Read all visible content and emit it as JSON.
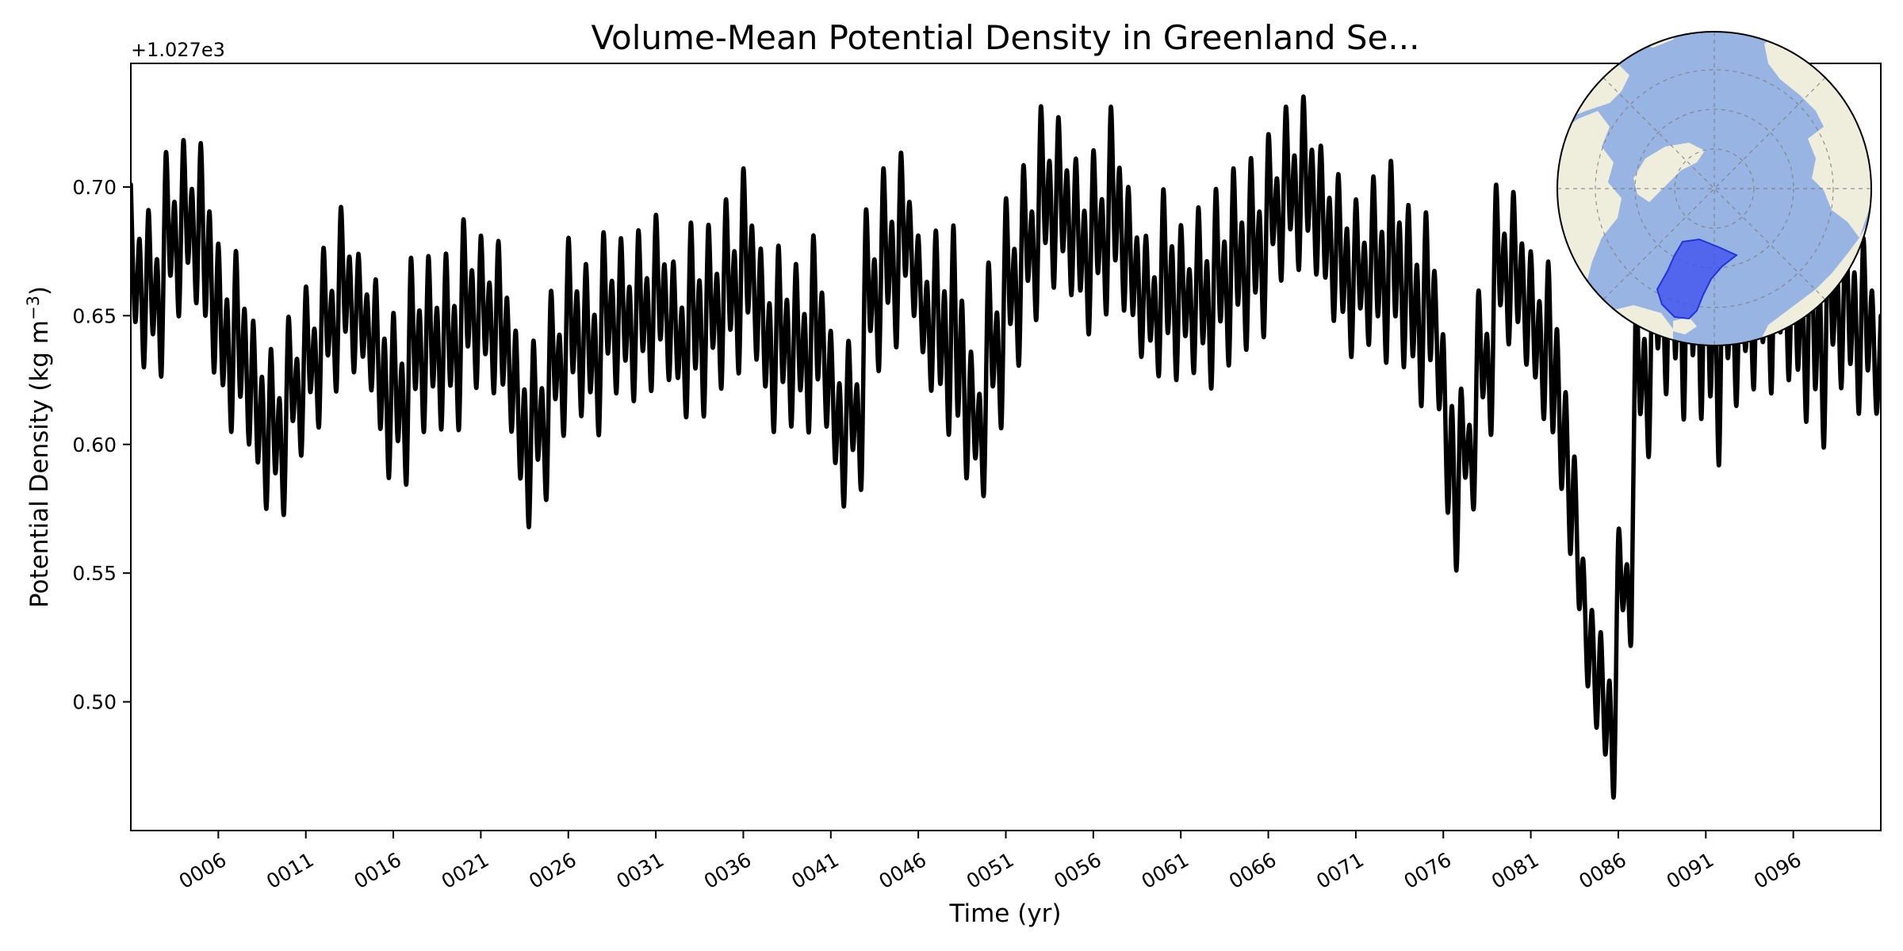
{
  "chart_data": {
    "type": "line",
    "title": "Volume-Mean Potential Density in Greenland Se...",
    "xlabel": "Time (yr)",
    "ylabel_main": "Potential Density (kg m",
    "ylabel_sup": "−3",
    "ylabel_close": ")",
    "offset_label": "+1.027e3",
    "xlim": [
      1,
      101
    ],
    "ylim": [
      0.45,
      0.748
    ],
    "grid": false,
    "x_ticks": [
      {
        "x": 6,
        "label": "0006"
      },
      {
        "x": 11,
        "label": "0011"
      },
      {
        "x": 16,
        "label": "0016"
      },
      {
        "x": 21,
        "label": "0021"
      },
      {
        "x": 26,
        "label": "0026"
      },
      {
        "x": 31,
        "label": "0031"
      },
      {
        "x": 36,
        "label": "0036"
      },
      {
        "x": 41,
        "label": "0041"
      },
      {
        "x": 46,
        "label": "0046"
      },
      {
        "x": 51,
        "label": "0051"
      },
      {
        "x": 56,
        "label": "0056"
      },
      {
        "x": 61,
        "label": "0061"
      },
      {
        "x": 66,
        "label": "0066"
      },
      {
        "x": 71,
        "label": "0071"
      },
      {
        "x": 76,
        "label": "0076"
      },
      {
        "x": 81,
        "label": "0081"
      },
      {
        "x": 86,
        "label": "0086"
      },
      {
        "x": 91,
        "label": "0091"
      },
      {
        "x": 96,
        "label": "0096"
      }
    ],
    "y_ticks": [
      {
        "y": 0.5,
        "label": "0.50"
      },
      {
        "y": 0.55,
        "label": "0.55"
      },
      {
        "y": 0.6,
        "label": "0.60"
      },
      {
        "y": 0.65,
        "label": "0.65"
      },
      {
        "y": 0.7,
        "label": "0.70"
      }
    ],
    "series": [
      {
        "color": "#000000",
        "annual_envelope": {
          "x": [
            1,
            2,
            3,
            4,
            5,
            6,
            7,
            8,
            9,
            10,
            11,
            12,
            13,
            14,
            15,
            16,
            17,
            18,
            19,
            20,
            21,
            22,
            23,
            24,
            25,
            26,
            27,
            28,
            29,
            30,
            31,
            32,
            33,
            34,
            35,
            36,
            37,
            38,
            39,
            40,
            41,
            42,
            43,
            44,
            45,
            46,
            47,
            48,
            49,
            50,
            51,
            52,
            53,
            54,
            55,
            56,
            57,
            58,
            59,
            60,
            61,
            62,
            63,
            64,
            65,
            66,
            67,
            68,
            69,
            70,
            71,
            72,
            73,
            74,
            75,
            76,
            77,
            78,
            79,
            80,
            81,
            82,
            83,
            84,
            85,
            86,
            87,
            88,
            89,
            90,
            91,
            92,
            93,
            94,
            95,
            96,
            97,
            98,
            99,
            100
          ],
          "max": [
            0.701,
            0.691,
            0.713,
            0.718,
            0.717,
            0.678,
            0.675,
            0.648,
            0.637,
            0.649,
            0.661,
            0.676,
            0.692,
            0.674,
            0.664,
            0.651,
            0.672,
            0.673,
            0.674,
            0.687,
            0.681,
            0.679,
            0.644,
            0.64,
            0.659,
            0.68,
            0.67,
            0.682,
            0.68,
            0.683,
            0.689,
            0.671,
            0.686,
            0.685,
            0.695,
            0.707,
            0.676,
            0.677,
            0.67,
            0.681,
            0.644,
            0.64,
            0.69,
            0.707,
            0.713,
            0.681,
            0.683,
            0.685,
            0.636,
            0.67,
            0.695,
            0.708,
            0.731,
            0.727,
            0.711,
            0.714,
            0.731,
            0.7,
            0.681,
            0.699,
            0.685,
            0.692,
            0.699,
            0.707,
            0.711,
            0.72,
            0.731,
            0.735,
            0.716,
            0.705,
            0.695,
            0.704,
            0.71,
            0.693,
            0.69,
            0.642,
            0.621,
            0.659,
            0.7,
            0.698,
            0.675,
            0.671,
            0.62,
            0.555,
            0.527,
            0.565,
            0.66,
            0.69,
            0.705,
            0.71,
            0.7,
            0.69,
            0.68,
            0.7,
            0.7,
            0.69,
            0.69,
            0.69,
            0.69,
            0.68
          ],
          "min": [
            0.63,
            0.627,
            0.65,
            0.655,
            0.628,
            0.605,
            0.6,
            0.575,
            0.573,
            0.596,
            0.607,
            0.621,
            0.628,
            0.621,
            0.587,
            0.585,
            0.605,
            0.606,
            0.606,
            0.622,
            0.62,
            0.605,
            0.568,
            0.579,
            0.604,
            0.611,
            0.604,
            0.62,
            0.617,
            0.621,
            0.625,
            0.611,
            0.611,
            0.622,
            0.628,
            0.633,
            0.605,
            0.607,
            0.605,
            0.607,
            0.576,
            0.584,
            0.629,
            0.638,
            0.65,
            0.621,
            0.604,
            0.587,
            0.581,
            0.607,
            0.631,
            0.649,
            0.661,
            0.658,
            0.643,
            0.651,
            0.652,
            0.634,
            0.627,
            0.625,
            0.628,
            0.622,
            0.631,
            0.637,
            0.642,
            0.664,
            0.668,
            0.666,
            0.648,
            0.634,
            0.639,
            0.632,
            0.63,
            0.615,
            0.614,
            0.551,
            0.576,
            0.605,
            0.639,
            0.631,
            0.61,
            0.583,
            0.537,
            0.49,
            0.464,
            0.526,
            0.596,
            0.62,
            0.61,
            0.61,
            0.592,
            0.615,
            0.622,
            0.62,
            0.625,
            0.609,
            0.599,
            0.622,
            0.612,
            0.612
          ]
        }
      }
    ],
    "inset_map": {
      "projection": "north-polar-stereographic",
      "ocean_color": "#98b4e2",
      "land_color": "#efeedd",
      "region_fill": "#3b4cf0",
      "region_name": "Greenland Sea"
    }
  }
}
